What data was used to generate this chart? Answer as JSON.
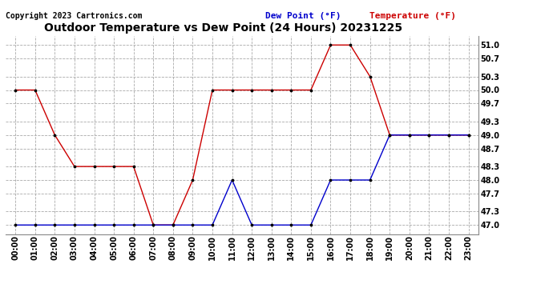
{
  "title": "Outdoor Temperature vs Dew Point (24 Hours) 20231225",
  "copyright": "Copyright 2023 Cartronics.com",
  "legend_dew": "Dew Point (°F)",
  "legend_temp": "Temperature (°F)",
  "hours": [
    "00:00",
    "01:00",
    "02:00",
    "03:00",
    "04:00",
    "05:00",
    "06:00",
    "07:00",
    "08:00",
    "09:00",
    "10:00",
    "11:00",
    "12:00",
    "13:00",
    "14:00",
    "15:00",
    "16:00",
    "17:00",
    "18:00",
    "19:00",
    "20:00",
    "21:00",
    "22:00",
    "23:00"
  ],
  "temperature": [
    50.0,
    50.0,
    49.0,
    48.3,
    48.3,
    48.3,
    48.3,
    47.0,
    47.0,
    48.0,
    50.0,
    50.0,
    50.0,
    50.0,
    50.0,
    50.0,
    51.0,
    51.0,
    50.3,
    49.0,
    49.0,
    49.0,
    49.0,
    49.0
  ],
  "dew_point": [
    47.0,
    47.0,
    47.0,
    47.0,
    47.0,
    47.0,
    47.0,
    47.0,
    47.0,
    47.0,
    47.0,
    48.0,
    47.0,
    47.0,
    47.0,
    47.0,
    48.0,
    48.0,
    48.0,
    49.0,
    49.0,
    49.0,
    49.0,
    49.0
  ],
  "ylim": [
    46.8,
    51.2
  ],
  "yticks": [
    47.0,
    47.3,
    47.7,
    48.0,
    48.3,
    48.7,
    49.0,
    49.3,
    49.7,
    50.0,
    50.3,
    50.7,
    51.0
  ],
  "temp_color": "#cc0000",
  "dew_color": "#0000cc",
  "bg_color": "#ffffff",
  "grid_color": "#aaaaaa",
  "title_fontsize": 10,
  "axis_fontsize": 7,
  "copyright_fontsize": 7,
  "legend_fontsize": 8
}
